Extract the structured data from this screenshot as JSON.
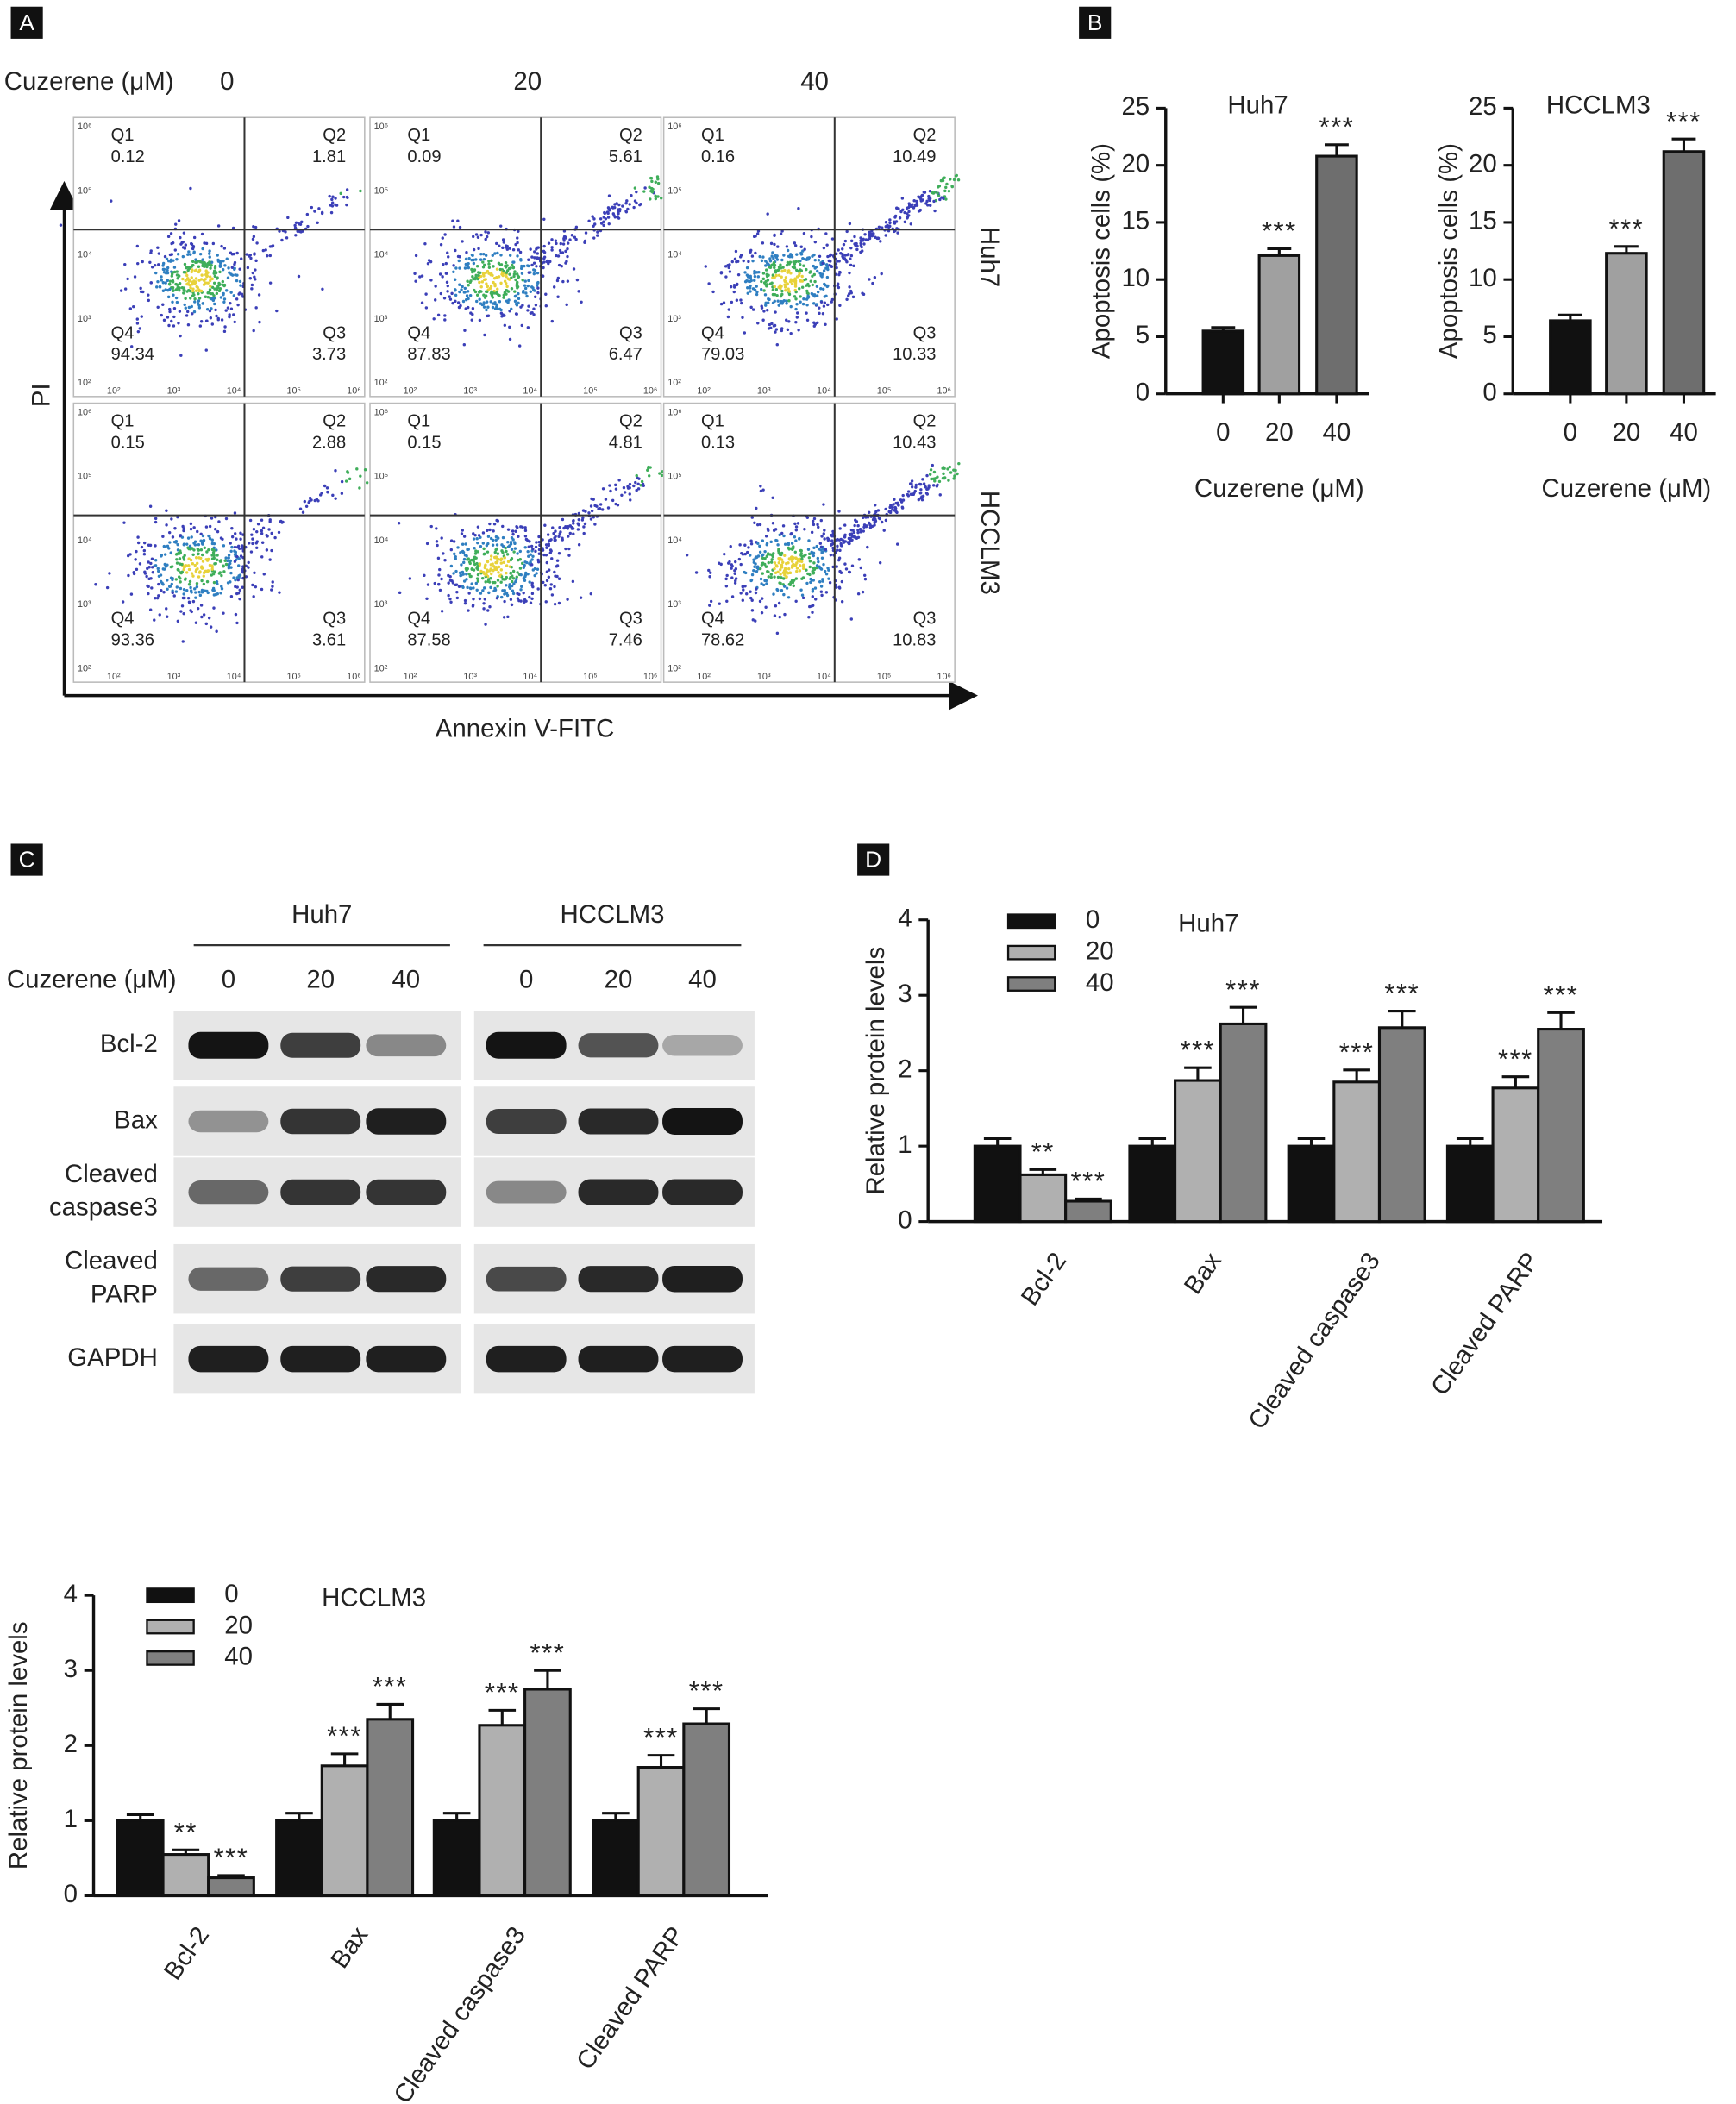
{
  "panel_labels": [
    "A",
    "B",
    "C",
    "D"
  ],
  "flow": {
    "treatment_label": "Cuzerene (μM)",
    "doses": [
      0,
      20,
      40
    ],
    "quadrant_names": [
      "Q1",
      "Q2",
      "Q3",
      "Q4"
    ],
    "log_ticks": [
      "10²",
      "10³",
      "10⁴",
      "10⁵",
      "10⁶"
    ],
    "x_label": "Annexin V-FITC",
    "y_label": "PI",
    "rows": [
      {
        "name": "Huh7",
        "plots": [
          [
            0.12,
            1.81,
            3.73,
            94.34
          ],
          [
            0.09,
            5.61,
            6.47,
            87.83
          ],
          [
            0.16,
            10.49,
            10.33,
            79.03
          ]
        ]
      },
      {
        "name": "HCCLM3",
        "plots": [
          [
            0.15,
            2.88,
            3.61,
            93.36
          ],
          [
            0.15,
            4.81,
            7.46,
            87.58
          ],
          [
            0.13,
            10.43,
            10.83,
            78.62
          ]
        ]
      }
    ]
  },
  "blot": {
    "cell_lines": [
      "Huh7",
      "HCCLM3"
    ],
    "treatment_label": "Cuzerene (μM)",
    "doses": [
      0,
      20,
      40
    ],
    "proteins": [
      [
        "Bcl-2"
      ],
      [
        "Bax"
      ],
      [
        "Cleaved",
        "caspase3"
      ],
      [
        "Cleaved",
        "PARP"
      ],
      [
        "GAPDH"
      ]
    ]
  },
  "chart_data": [
    {
      "type": "bar",
      "title": "Huh7",
      "x_label": "Cuzerene (μM)",
      "y_label": "Apoptosis cells (%)",
      "categories": [
        "0",
        "20",
        "40"
      ],
      "values": [
        5.5,
        12.1,
        20.8
      ],
      "errors": [
        0.3,
        0.6,
        1.0
      ],
      "significance": [
        null,
        "***",
        "***"
      ],
      "colors": [
        "#111111",
        "#a0a0a0",
        "#6e6e6e"
      ],
      "ylim": [
        0,
        25
      ],
      "yticks": [
        0,
        5,
        10,
        15,
        20,
        25
      ]
    },
    {
      "type": "bar",
      "title": "HCCLM3",
      "x_label": "Cuzerene (μM)",
      "y_label": "Apoptosis cells (%)",
      "categories": [
        "0",
        "20",
        "40"
      ],
      "values": [
        6.4,
        12.3,
        21.2
      ],
      "errors": [
        0.5,
        0.6,
        1.1
      ],
      "significance": [
        null,
        "***",
        "***"
      ],
      "colors": [
        "#111111",
        "#a0a0a0",
        "#6e6e6e"
      ],
      "ylim": [
        0,
        25
      ],
      "yticks": [
        0,
        5,
        10,
        15,
        20,
        25
      ]
    },
    {
      "type": "grouped_bar",
      "title": "Huh7",
      "y_label": "Relative protein levels",
      "categories": [
        "Bcl-2",
        "Bax",
        "Cleaved caspase3",
        "Cleaved PARP"
      ],
      "series": [
        {
          "name": "0",
          "color": "#111111",
          "values": [
            1,
            1,
            1,
            1
          ],
          "errors": [
            0.1,
            0.1,
            0.1,
            0.1
          ],
          "significance": [
            null,
            null,
            null,
            null
          ]
        },
        {
          "name": "20",
          "color": "#b0b0b0",
          "values": [
            0.62,
            1.87,
            1.85,
            1.77
          ],
          "errors": [
            0.07,
            0.17,
            0.16,
            0.15
          ],
          "significance": [
            "**",
            "***",
            "***",
            "***"
          ]
        },
        {
          "name": "40",
          "color": "#7f7f7f",
          "values": [
            0.27,
            2.62,
            2.57,
            2.55
          ],
          "errors": [
            0.03,
            0.22,
            0.22,
            0.22
          ],
          "significance": [
            "***",
            "***",
            "***",
            "***"
          ]
        }
      ],
      "ylim": [
        0,
        4
      ],
      "yticks": [
        0,
        1,
        2,
        3,
        4
      ]
    },
    {
      "type": "grouped_bar",
      "title": "HCCLM3",
      "y_label": "Relative protein levels",
      "categories": [
        "Bcl-2",
        "Bax",
        "Cleaved caspase3",
        "Cleaved PARP"
      ],
      "series": [
        {
          "name": "0",
          "color": "#111111",
          "values": [
            1,
            1,
            1,
            1
          ],
          "errors": [
            0.08,
            0.1,
            0.1,
            0.1
          ],
          "significance": [
            null,
            null,
            null,
            null
          ]
        },
        {
          "name": "20",
          "color": "#b0b0b0",
          "values": [
            0.55,
            1.73,
            2.27,
            1.71
          ],
          "errors": [
            0.06,
            0.16,
            0.2,
            0.16
          ],
          "significance": [
            "**",
            "***",
            "***",
            "***"
          ]
        },
        {
          "name": "40",
          "color": "#7f7f7f",
          "values": [
            0.24,
            2.35,
            2.75,
            2.29
          ],
          "errors": [
            0.03,
            0.2,
            0.25,
            0.2
          ],
          "significance": [
            "***",
            "***",
            "***",
            "***"
          ]
        }
      ],
      "ylim": [
        0,
        4
      ],
      "yticks": [
        0,
        1,
        2,
        3,
        4
      ]
    }
  ]
}
